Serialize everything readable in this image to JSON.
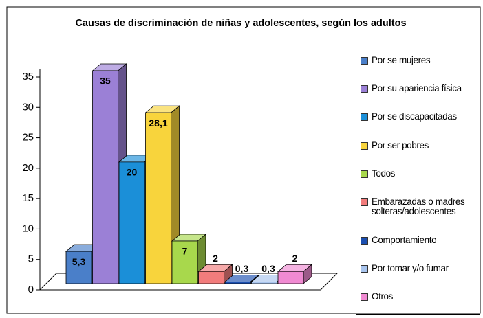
{
  "chart_data": {
    "type": "bar",
    "title": "Causas de discriminación de niñas y adolescentes, según los adultos",
    "categories": [
      "Por se mujeres",
      "Por su apariencia física",
      "Por se discapacitadas",
      "Por ser pobres",
      "Todos",
      "Embarazadas o madres solteras/adolescentes",
      "Comportamiento",
      "Por tomar y/o fumar",
      "Otros"
    ],
    "values": [
      5.3,
      35,
      20,
      28.1,
      7,
      2,
      0.3,
      0.3,
      2
    ],
    "value_labels": [
      "5,3",
      "35",
      "20",
      "28,1",
      "7",
      "2",
      "0,3",
      "0,3",
      "2"
    ],
    "colors": [
      "#4a7fc9",
      "#9b80d6",
      "#1b8fd8",
      "#f8d43c",
      "#a8d84c",
      "#f27c7c",
      "#1b4fb0",
      "#a9c5ee",
      "#f08ad2"
    ],
    "ylim": [
      0,
      35
    ],
    "yticks": [
      0,
      5,
      10,
      15,
      20,
      25,
      30,
      35
    ],
    "legend": "right"
  }
}
